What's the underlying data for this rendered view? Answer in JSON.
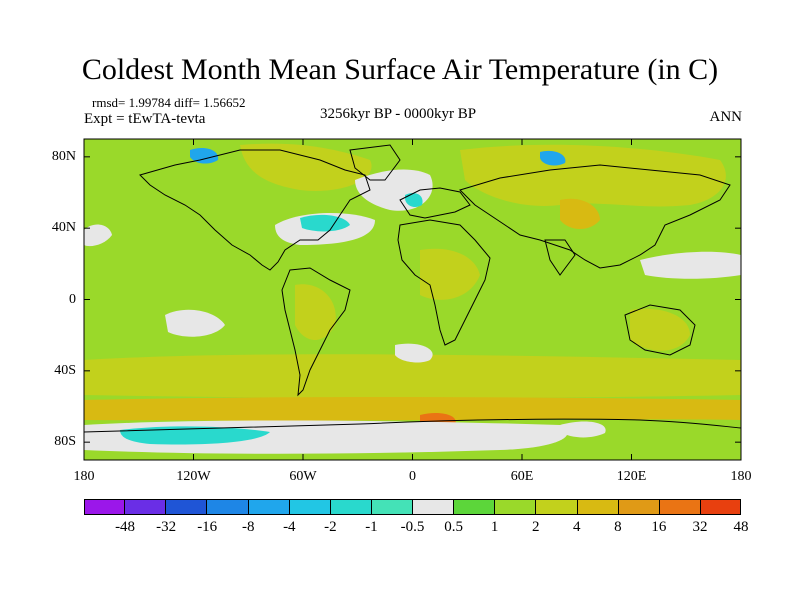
{
  "title": "Coldest Month Mean Surface Air Temperature (in C)",
  "stats": "rmsd= 1.99784 diff= 1.56652",
  "experiment": "Expt = tEwTA-tevta",
  "period": "3256kyr BP - 0000kyr BP",
  "season": "ANN",
  "lat_ticks": [
    {
      "label": "80N",
      "lat": 80
    },
    {
      "label": "40N",
      "lat": 40
    },
    {
      "label": "0",
      "lat": 0
    },
    {
      "label": "40S",
      "lat": -40
    },
    {
      "label": "80S",
      "lat": -80
    }
  ],
  "lon_ticks": [
    {
      "label": "180",
      "lon": -180
    },
    {
      "label": "120W",
      "lon": -120
    },
    {
      "label": "60W",
      "lon": -60
    },
    {
      "label": "0",
      "lon": 0
    },
    {
      "label": "60E",
      "lon": 60
    },
    {
      "label": "120E",
      "lon": 120
    },
    {
      "label": "180",
      "lon": 180
    }
  ],
  "legend": {
    "colors": [
      "#9b17ea",
      "#6a2ee6",
      "#1f55d6",
      "#1e86e6",
      "#20a6ec",
      "#22c6e4",
      "#29d9cd",
      "#44e2b7",
      "#e7e7e7",
      "#5cd63a",
      "#9ad92a",
      "#c2d11c",
      "#d8ba12",
      "#e09a16",
      "#ea7414",
      "#e8400f"
    ],
    "labels": [
      "-48",
      "-32",
      "-16",
      "-8",
      "-4",
      "-2",
      "-1",
      "-0.5",
      "0.5",
      "1",
      "2",
      "4",
      "8",
      "16",
      "32",
      "48"
    ]
  },
  "colors": {
    "base_green": "#9ad92a",
    "warm": "#c2d11c",
    "warmer": "#d8ba12",
    "neutral": "#e7e7e7",
    "cool": "#29d9cd",
    "cold": "#20a6ec"
  }
}
